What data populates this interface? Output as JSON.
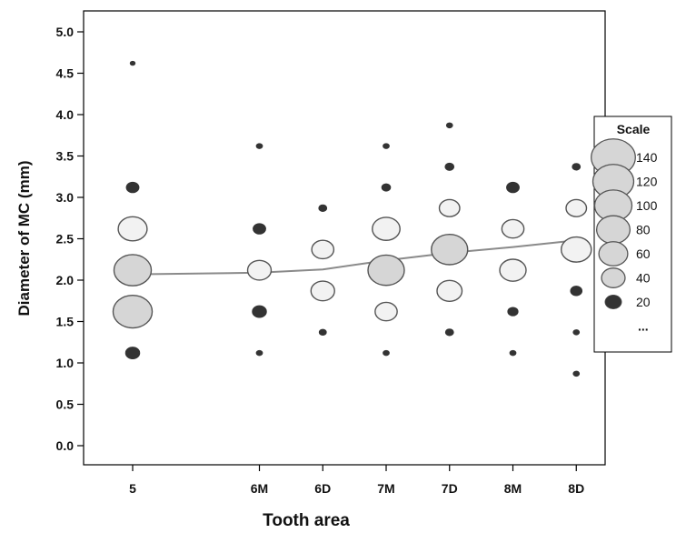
{
  "chart_data": {
    "type": "scatter",
    "subtype": "bubble",
    "xlabel": "Tooth area",
    "ylabel": "Diameter of MC (mm)",
    "categories": [
      "5",
      "6M",
      "6D",
      "7M",
      "7D",
      "8M",
      "8D"
    ],
    "x_positions": [
      1,
      2,
      2.5,
      3,
      3.5,
      4,
      4.5
    ],
    "ylim": [
      -0.05,
      5.25
    ],
    "yticks": [
      "0.0",
      "0.5",
      "1.0",
      "1.5",
      "2.0",
      "2.5",
      "3.0",
      "3.5",
      "4.0",
      "4.5",
      "5.0"
    ],
    "grid": false,
    "points": [
      {
        "category": "5",
        "y": 4.62,
        "count": 2
      },
      {
        "category": "5",
        "y": 3.12,
        "count": 12
      },
      {
        "category": "5",
        "y": 2.62,
        "count": 60
      },
      {
        "category": "5",
        "y": 2.12,
        "count": 100
      },
      {
        "category": "5",
        "y": 1.62,
        "count": 110
      },
      {
        "category": "5",
        "y": 1.12,
        "count": 15
      },
      {
        "category": "6M",
        "y": 3.62,
        "count": 3
      },
      {
        "category": "6M",
        "y": 2.62,
        "count": 12
      },
      {
        "category": "6M",
        "y": 2.12,
        "count": 40
      },
      {
        "category": "6M",
        "y": 1.62,
        "count": 15
      },
      {
        "category": "6M",
        "y": 1.12,
        "count": 3
      },
      {
        "category": "6D",
        "y": 2.87,
        "count": 5
      },
      {
        "category": "6D",
        "y": 2.37,
        "count": 35
      },
      {
        "category": "6D",
        "y": 1.87,
        "count": 40
      },
      {
        "category": "6D",
        "y": 1.37,
        "count": 4
      },
      {
        "category": "7M",
        "y": 3.62,
        "count": 3
      },
      {
        "category": "7M",
        "y": 3.12,
        "count": 6
      },
      {
        "category": "7M",
        "y": 2.62,
        "count": 55
      },
      {
        "category": "7M",
        "y": 2.12,
        "count": 95
      },
      {
        "category": "7M",
        "y": 1.62,
        "count": 35
      },
      {
        "category": "7M",
        "y": 1.12,
        "count": 3
      },
      {
        "category": "7D",
        "y": 3.87,
        "count": 3
      },
      {
        "category": "7D",
        "y": 3.37,
        "count": 6
      },
      {
        "category": "7D",
        "y": 2.87,
        "count": 30
      },
      {
        "category": "7D",
        "y": 2.37,
        "count": 95
      },
      {
        "category": "7D",
        "y": 1.87,
        "count": 45
      },
      {
        "category": "7D",
        "y": 1.37,
        "count": 5
      },
      {
        "category": "8M",
        "y": 3.12,
        "count": 12
      },
      {
        "category": "8M",
        "y": 2.62,
        "count": 35
      },
      {
        "category": "8M",
        "y": 2.12,
        "count": 50
      },
      {
        "category": "8M",
        "y": 1.62,
        "count": 8
      },
      {
        "category": "8M",
        "y": 1.12,
        "count": 3
      },
      {
        "category": "8D",
        "y": 3.37,
        "count": 5
      },
      {
        "category": "8D",
        "y": 2.87,
        "count": 30
      },
      {
        "category": "8D",
        "y": 2.37,
        "count": 65
      },
      {
        "category": "8D",
        "y": 1.87,
        "count": 10
      },
      {
        "category": "8D",
        "y": 1.37,
        "count": 3
      },
      {
        "category": "8D",
        "y": 0.87,
        "count": 3
      }
    ],
    "mean_line": [
      {
        "category": "5",
        "y": 2.07
      },
      {
        "category": "6M",
        "y": 2.09
      },
      {
        "category": "6D",
        "y": 2.13
      },
      {
        "category": "7M",
        "y": 2.24
      },
      {
        "category": "7D",
        "y": 2.33
      },
      {
        "category": "8M",
        "y": 2.4
      },
      {
        "category": "8D",
        "y": 2.48
      }
    ],
    "legend": {
      "title": "Scale",
      "position": "right",
      "entries": [
        {
          "label": "140",
          "count": 140
        },
        {
          "label": "120",
          "count": 120
        },
        {
          "label": "100",
          "count": 100
        },
        {
          "label": "80",
          "count": 80
        },
        {
          "label": "60",
          "count": 60
        },
        {
          "label": "40",
          "count": 40
        },
        {
          "label": "20",
          "count": 20
        },
        {
          "label": "...",
          "count": null
        }
      ]
    },
    "colors": {
      "bubble_fill": "#d6d6d6",
      "bubble_stroke": "#555555",
      "line": "#8a8a8a",
      "axis": "#000000"
    }
  }
}
